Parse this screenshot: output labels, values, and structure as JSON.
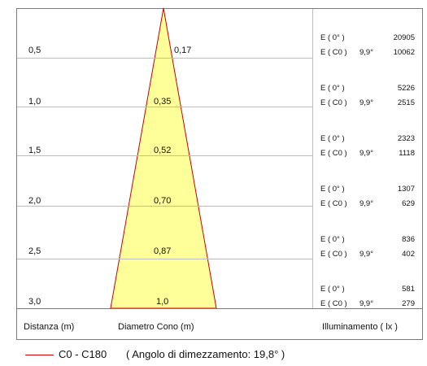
{
  "rows": [
    {
      "distance": "0,5",
      "diameter": "0,17",
      "e0_label": "E ( 0° )",
      "ec0_label": "E ( C0 )",
      "angle": "9,9°",
      "e0": "20905",
      "ec0": "10062"
    },
    {
      "distance": "1,0",
      "diameter": "0,35",
      "e0_label": "E ( 0° )",
      "ec0_label": "E ( C0 )",
      "angle": "9,9°",
      "e0": "5226",
      "ec0": "2515"
    },
    {
      "distance": "1,5",
      "diameter": "0,52",
      "e0_label": "E ( 0° )",
      "ec0_label": "E ( C0 )",
      "angle": "9,9°",
      "e0": "2323",
      "ec0": "1118"
    },
    {
      "distance": "2,0",
      "diameter": "0,70",
      "e0_label": "E ( 0° )",
      "ec0_label": "E ( C0 )",
      "angle": "9,9°",
      "e0": "1307",
      "ec0": "629"
    },
    {
      "distance": "2,5",
      "diameter": "0,87",
      "e0_label": "E ( 0° )",
      "ec0_label": "E ( C0 )",
      "angle": "9,9°",
      "e0": "836",
      "ec0": "402"
    },
    {
      "distance": "3,0",
      "diameter": "1,0",
      "e0_label": "E ( 0° )",
      "ec0_label": "E ( C0 )",
      "angle": "9,9°",
      "e0": "581",
      "ec0": "279"
    }
  ],
  "footer": {
    "distance_label": "Distanza (m)",
    "diameter_label": "Diametro Cono (m)",
    "illuminance_label": "Illuminamento ( lx )"
  },
  "legend": {
    "label": "C0 - C180",
    "note": "( Angolo di dimezzamento: 19,8° )",
    "line_color": "#cc0000"
  },
  "colors": {
    "cone_fill": "#ffff99",
    "cone_stroke": "#cc0000"
  }
}
